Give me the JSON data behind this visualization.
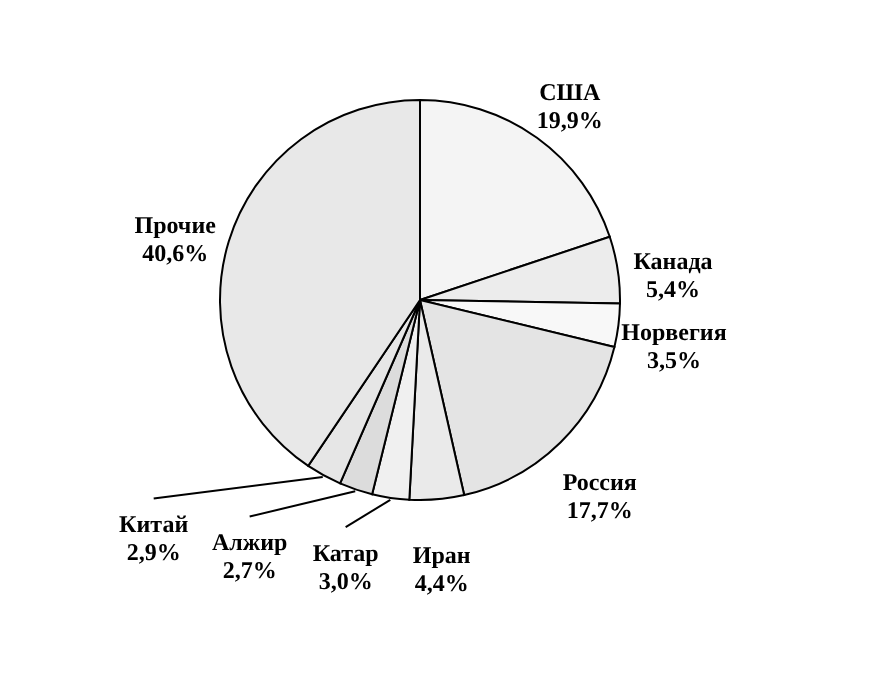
{
  "chart_data": {
    "type": "pie",
    "categories": [
      "США",
      "Канада",
      "Норвегия",
      "Россия",
      "Иран",
      "Катар",
      "Алжир",
      "Китай",
      "Прочие"
    ],
    "values": [
      19.9,
      5.4,
      3.5,
      17.7,
      4.4,
      3.0,
      2.7,
      2.9,
      40.6
    ],
    "value_labels": [
      "19,9%",
      "5,4%",
      "3,5%",
      "17,7%",
      "4,4%",
      "3,0%",
      "2,7%",
      "2,9%",
      "40,6%"
    ],
    "colors": [
      "#f4f4f4",
      "#ececec",
      "#f8f8f8",
      "#e4e4e4",
      "#eaeaea",
      "#f0f0f0",
      "#dcdcdc",
      "#e6e6e6",
      "#e8e8e8"
    ]
  }
}
